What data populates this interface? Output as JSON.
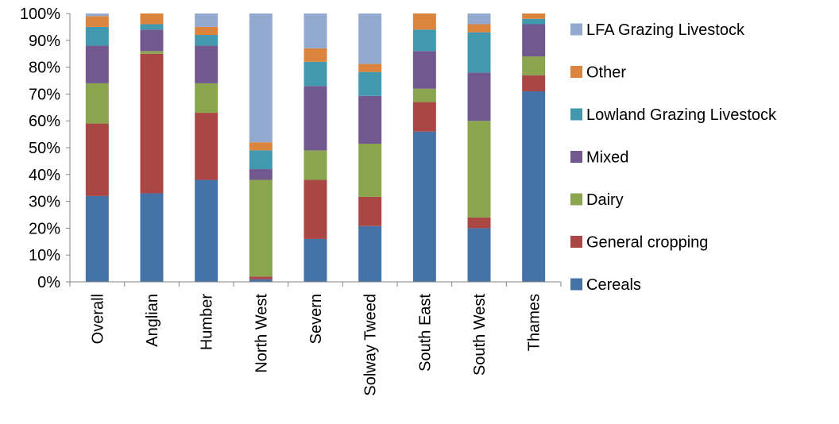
{
  "chart_data": {
    "type": "bar",
    "stacked": true,
    "normalized": true,
    "title": "",
    "xlabel": "",
    "ylabel": "",
    "ylim": [
      0,
      100
    ],
    "y_ticks": [
      "0%",
      "10%",
      "20%",
      "30%",
      "40%",
      "50%",
      "60%",
      "70%",
      "80%",
      "90%",
      "100%"
    ],
    "categories": [
      "Overall",
      "Anglian",
      "Humber",
      "North West",
      "Severn",
      "Solway Tweed",
      "South East",
      "South West",
      "Thames"
    ],
    "series": [
      {
        "name": "Cereals",
        "color": "#4572A7",
        "values": [
          32,
          33,
          38,
          1,
          16,
          21,
          56,
          20,
          71
        ]
      },
      {
        "name": "General cropping",
        "color": "#AA4643",
        "values": [
          27,
          52,
          25,
          1,
          22,
          11,
          11,
          4,
          6
        ]
      },
      {
        "name": "Dairy",
        "color": "#89A54E",
        "values": [
          15,
          1,
          11,
          36,
          11,
          20,
          5,
          36,
          7
        ]
      },
      {
        "name": "Mixed",
        "color": "#71588F",
        "values": [
          14,
          8,
          14,
          4,
          24,
          18,
          14,
          18,
          12
        ]
      },
      {
        "name": "Lowland Grazing Livestock",
        "color": "#4198AF",
        "values": [
          7,
          2,
          4,
          7,
          9,
          9,
          8,
          15,
          2
        ]
      },
      {
        "name": "Other",
        "color": "#DB843D",
        "values": [
          4,
          4,
          3,
          3,
          5,
          3,
          6,
          3,
          2
        ]
      },
      {
        "name": "LFA Grazing Livestock",
        "color": "#93A9CF",
        "values": [
          1,
          0,
          5,
          48,
          13,
          19,
          0,
          4,
          0
        ]
      }
    ],
    "legend_position": "right",
    "legend_order": [
      "LFA Grazing Livestock",
      "Other",
      "Lowland Grazing Livestock",
      "Mixed",
      "Dairy",
      "General cropping",
      "Cereals"
    ],
    "grid": false
  }
}
